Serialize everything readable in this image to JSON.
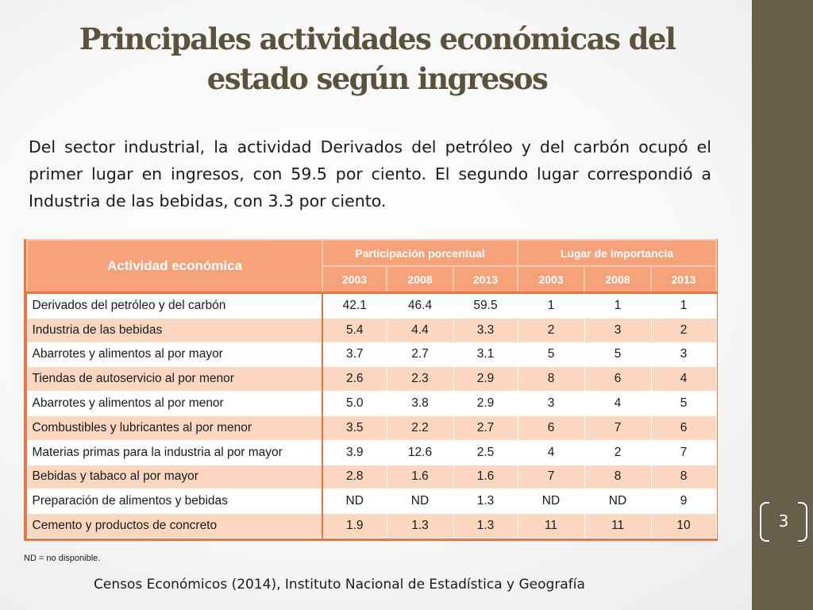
{
  "slide": {
    "title_line1": "Principales actividades económicas del",
    "title_line2": "estado según ingresos",
    "intro": "Del sector industrial, la actividad Derivados del petróleo y del carbón ocupó el primer lugar en ingresos, con 59.5 por ciento. El segundo lugar correspondió a Industria de las bebidas, con 3.3 por ciento.",
    "note": "ND = no disponible.",
    "source": "Censos Económicos (2014), Instituto Nacional de Estadística y Geografía",
    "slide_number": "3"
  },
  "table": {
    "header_activity": "Actividad económica",
    "header_group1": "Participación porcentual",
    "header_group2": "Lugar de importancia",
    "years": [
      "2003",
      "2008",
      "2013",
      "2003",
      "2008",
      "2013"
    ],
    "rows": [
      {
        "name": "Derivados del petróleo y del carbón",
        "values": [
          "42.1",
          "46.4",
          "59.5",
          "1",
          "1",
          "1"
        ]
      },
      {
        "name": "Industria de las bebidas",
        "values": [
          "5.4",
          "4.4",
          "3.3",
          "2",
          "3",
          "2"
        ]
      },
      {
        "name": "Abarrotes y alimentos al por mayor",
        "values": [
          "3.7",
          "2.7",
          "3.1",
          "5",
          "5",
          "3"
        ]
      },
      {
        "name": "Tiendas de autoservicio al por menor",
        "values": [
          "2.6",
          "2.3",
          "2.9",
          "8",
          "6",
          "4"
        ]
      },
      {
        "name": "Abarrotes y alimentos al por menor",
        "values": [
          "5.0",
          "3.8",
          "2.9",
          "3",
          "4",
          "5"
        ]
      },
      {
        "name": "Combustibles y lubricantes al por menor",
        "values": [
          "3.5",
          "2.2",
          "2.7",
          "6",
          "7",
          "6"
        ]
      },
      {
        "name": "Materias primas para la industria al por mayor",
        "values": [
          "3.9",
          "12.6",
          "2.5",
          "4",
          "2",
          "7"
        ]
      },
      {
        "name": "Bebidas y tabaco al por mayor",
        "values": [
          "2.8",
          "1.6",
          "1.6",
          "7",
          "8",
          "8"
        ]
      },
      {
        "name": "Preparación de alimentos y bebidas",
        "values": [
          "ND",
          "ND",
          "1.3",
          "ND",
          "ND",
          "9"
        ]
      },
      {
        "name": "Cemento y productos de concreto",
        "values": [
          "1.9",
          "1.3",
          "1.3",
          "11",
          "11",
          "10"
        ]
      }
    ]
  },
  "colors": {
    "sidebar": "#675f4a",
    "title": "#5a523d",
    "table_header": "#f5a27a",
    "table_border": "#e8773d",
    "row_alt": "#fbd7c2"
  }
}
